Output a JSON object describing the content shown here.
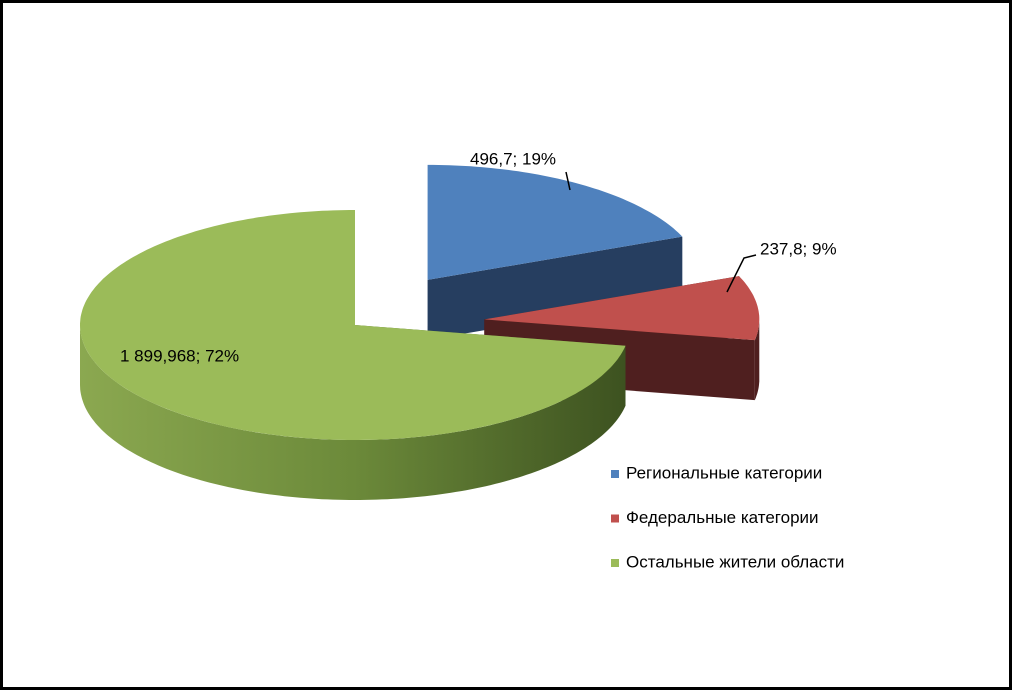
{
  "chart_data": {
    "type": "pie",
    "categories": [
      "Региональные категории",
      "Федеральные категории",
      "Остальные жители области"
    ],
    "values": [
      496.7,
      237.8,
      1899.968
    ],
    "value_labels": [
      "496,7;  19%",
      "237,8;  9%",
      "1 899,968;  72%"
    ],
    "colors": [
      "#4f81bd",
      "#c0504d",
      "#9bbb59"
    ],
    "side_colors": [
      "#263e60",
      "#4f1f1f",
      "#4f6a2b"
    ],
    "exploded": [
      true,
      true,
      false
    ],
    "legend": "right"
  }
}
